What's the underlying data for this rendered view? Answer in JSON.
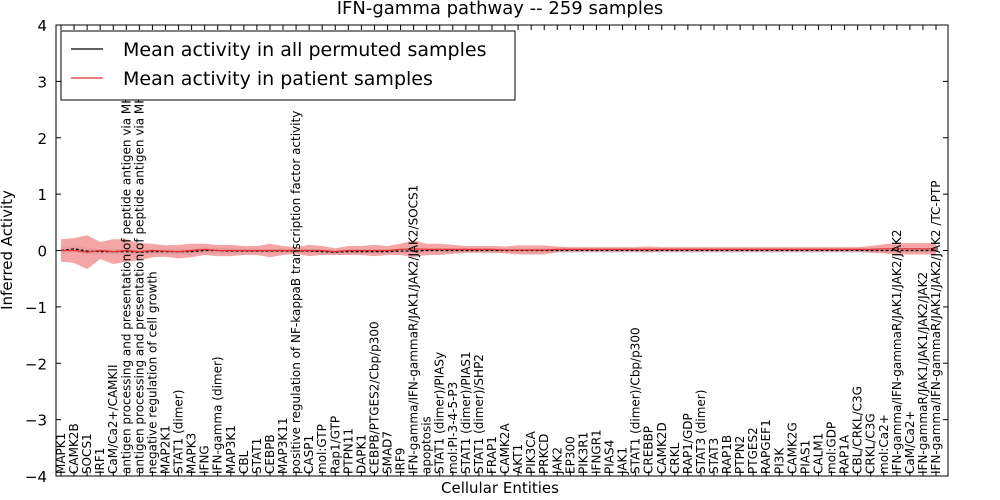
{
  "chart_data": {
    "type": "line",
    "title": "IFN-gamma pathway -- 259 samples",
    "xlabel": "Cellular Entities",
    "ylabel": "Inferred Activity",
    "ylim": [
      -4,
      4
    ],
    "yticks": [
      -4,
      -3,
      -2,
      -1,
      0,
      1,
      2,
      3,
      4
    ],
    "legend_position": "top-left",
    "grid": false,
    "categories": [
      "MAPK1",
      "CAMK2B",
      "SOCS1",
      "IRF1",
      "CaM/Ca2+/CAMKII",
      "antigen processing and presentation of peptide antigen via MHC class I",
      "antigen processing and presentation of peptide antigen via MHC class II",
      "negative regulation of cell growth",
      "MAP2K1",
      "STAT1 (dimer)",
      "MAPK3",
      "IFNG",
      "IFN-gamma (dimer)",
      "MAP3K1",
      "CBL",
      "STAT1",
      "CEBPB",
      "MAP3K11",
      "positive regulation of NF-kappaB transcription factor activity",
      "CASP1",
      "mol:GTP",
      "Rap1/GTP",
      "PTPN11",
      "DAPK1",
      "CEBPB/PTGES2/Cbp/p300",
      "SMAD7",
      "IRF9",
      "IFN-gamma/IFN-gammaR/JAK1/JAK2/JAK2/SOCS1",
      "apoptosis",
      "STAT1 (dimer)/PIASy",
      "mol:PI-3-4-5-P3",
      "STAT1 (dimer)/PIAS1",
      "STAT1 (dimer)/SHP2",
      "FRAP1",
      "CAMK2A",
      "AKT1",
      "PIK3CA",
      "PRKCD",
      "JAK2",
      "EP300",
      "PIK3R1",
      "IFNGR1",
      "PIAS4",
      "JAK1",
      "STAT1 (dimer)/Cbp/p300",
      "CREBBP",
      "CAMK2D",
      "CRKL",
      "RAP1/GDP",
      "STAT3 (dimer)",
      "STAT3",
      "RAP1B",
      "PTPN2",
      "PTGES2",
      "RAPGEF1",
      "PI3K",
      "CAMK2G",
      "PIAS1",
      "CALM1",
      "mol:GDP",
      "RAP1A",
      "CBL/CRKL/C3G",
      "CRKL/C3G",
      "mol:Ca2+",
      "IFN-gamma/IFN-gammaR/JAK1/JAK2/JAK2",
      "CaM/Ca2+",
      "IFN-gammaR/JAK1/JAK1/JAK2/JAK2",
      "IFN-gamma/IFN-gammaR/JAK1/JAK2/JAK2 /TC-PTP"
    ],
    "series": [
      {
        "name": "Mean activity in all permuted samples",
        "color": "#000000",
        "band_color": "#c8c8d4",
        "values": [
          0.0,
          0.03,
          -0.01,
          -0.02,
          -0.02,
          -0.02,
          -0.03,
          -0.02,
          -0.02,
          -0.02,
          -0.02,
          0.0,
          0.0,
          -0.01,
          -0.01,
          -0.01,
          -0.01,
          -0.01,
          -0.01,
          -0.01,
          -0.02,
          -0.03,
          -0.02,
          -0.02,
          -0.02,
          -0.02,
          -0.01,
          -0.01,
          0.0,
          0.0,
          0.0,
          0.0,
          0.0,
          0.0,
          0.0,
          0.0,
          0.0,
          0.0,
          0.0,
          0.0,
          0.0,
          0.0,
          0.0,
          0.0,
          0.0,
          0.0,
          0.0,
          0.0,
          0.0,
          0.0,
          0.0,
          0.0,
          0.0,
          0.0,
          0.0,
          0.0,
          0.0,
          0.0,
          0.0,
          0.0,
          0.0,
          0.0,
          0.0,
          0.0,
          0.0,
          0.0,
          0.0,
          0.0
        ],
        "spread": [
          0.06,
          0.06,
          0.06,
          0.05,
          0.05,
          0.05,
          0.05,
          0.05,
          0.05,
          0.05,
          0.05,
          0.05,
          0.05,
          0.05,
          0.04,
          0.04,
          0.04,
          0.04,
          0.04,
          0.04,
          0.04,
          0.04,
          0.04,
          0.04,
          0.04,
          0.04,
          0.04,
          0.04,
          0.04,
          0.04,
          0.04,
          0.04,
          0.04,
          0.04,
          0.04,
          0.04,
          0.04,
          0.04,
          0.04,
          0.04,
          0.04,
          0.04,
          0.04,
          0.04,
          0.04,
          0.04,
          0.04,
          0.04,
          0.04,
          0.04,
          0.04,
          0.04,
          0.04,
          0.04,
          0.04,
          0.04,
          0.04,
          0.04,
          0.04,
          0.04,
          0.04,
          0.04,
          0.04,
          0.04,
          0.04,
          0.04,
          0.04,
          0.04
        ]
      },
      {
        "name": "Mean activity in patient samples",
        "color": "#e03030",
        "band_color": "#f08080",
        "values": [
          0.0,
          0.0,
          -0.03,
          0.0,
          -0.02,
          0.0,
          -0.02,
          0.0,
          -0.01,
          -0.02,
          0.0,
          0.02,
          0.0,
          0.0,
          0.0,
          0.0,
          0.0,
          0.0,
          0.0,
          0.0,
          0.0,
          -0.02,
          0.0,
          0.0,
          0.0,
          0.0,
          0.02,
          0.03,
          0.02,
          0.02,
          0.02,
          0.02,
          0.02,
          0.02,
          0.01,
          0.01,
          0.01,
          0.01,
          0.02,
          0.02,
          0.02,
          0.02,
          0.02,
          0.02,
          0.02,
          0.02,
          0.02,
          0.02,
          0.02,
          0.02,
          0.02,
          0.02,
          0.02,
          0.02,
          0.02,
          0.02,
          0.02,
          0.02,
          0.02,
          0.02,
          0.02,
          0.02,
          0.02,
          0.03,
          0.03,
          0.03,
          0.03,
          0.03
        ],
        "spread": [
          0.2,
          0.22,
          0.3,
          0.15,
          0.22,
          0.2,
          0.15,
          0.12,
          0.1,
          0.12,
          0.12,
          0.1,
          0.1,
          0.1,
          0.08,
          0.08,
          0.12,
          0.08,
          0.06,
          0.1,
          0.08,
          0.06,
          0.08,
          0.08,
          0.1,
          0.08,
          0.1,
          0.15,
          0.1,
          0.1,
          0.08,
          0.06,
          0.06,
          0.06,
          0.06,
          0.08,
          0.08,
          0.08,
          0.05,
          0.04,
          0.04,
          0.04,
          0.04,
          0.04,
          0.04,
          0.05,
          0.04,
          0.04,
          0.04,
          0.04,
          0.04,
          0.04,
          0.04,
          0.04,
          0.04,
          0.04,
          0.04,
          0.04,
          0.04,
          0.04,
          0.04,
          0.04,
          0.06,
          0.08,
          0.1,
          0.1,
          0.1,
          0.1
        ]
      }
    ]
  }
}
